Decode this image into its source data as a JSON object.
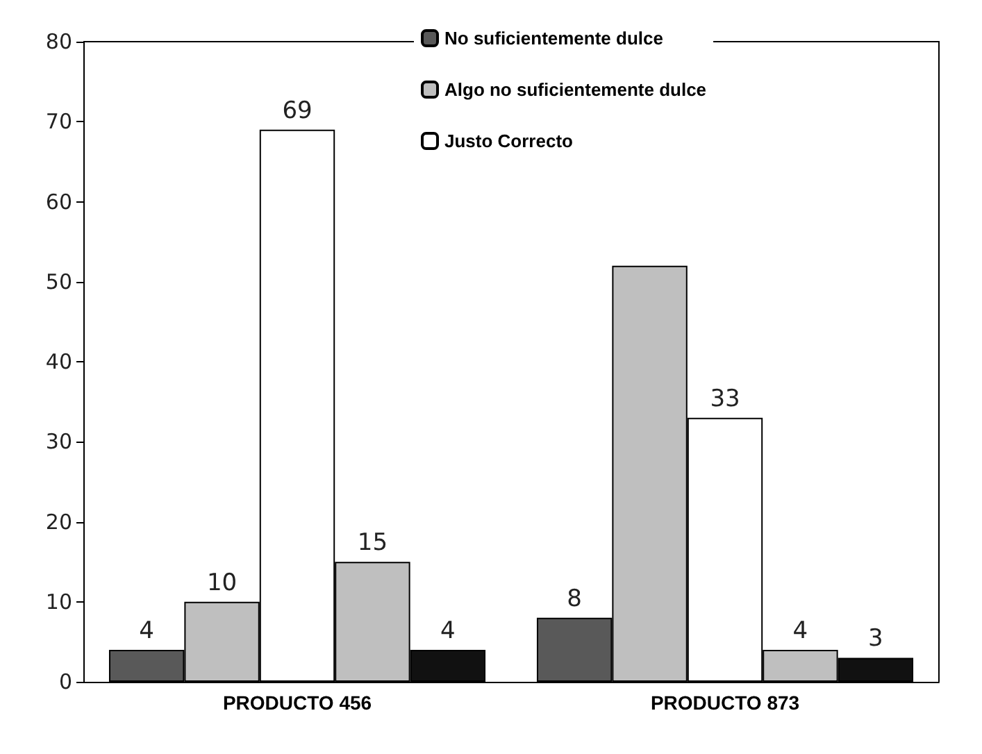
{
  "chart_data": {
    "type": "bar",
    "categories": [
      "PRODUCTO 456",
      "PRODUCTO 873"
    ],
    "series": [
      {
        "name": "No suficientemente dulce",
        "color": "#595959",
        "values": [
          4,
          8
        ],
        "value_labels": [
          "4",
          "8"
        ]
      },
      {
        "name": "Algo no suficientemente dulce",
        "color": "#bfbfbf",
        "values": [
          10,
          52
        ],
        "value_labels": [
          "10",
          null
        ]
      },
      {
        "name": "Justo Correcto",
        "color": "#ffffff",
        "values": [
          69,
          33
        ],
        "value_labels": [
          "69",
          "33"
        ]
      },
      {
        "color": "#bfbfbf",
        "values": [
          15,
          4
        ],
        "value_labels": [
          "15",
          "4"
        ]
      },
      {
        "color": "#111111",
        "values": [
          4,
          3
        ],
        "value_labels": [
          "4",
          "3"
        ]
      }
    ],
    "ylim": [
      0,
      80
    ],
    "yticks": [
      0,
      10,
      20,
      30,
      40,
      50,
      60,
      70,
      80
    ],
    "grid": false,
    "legend": "top"
  }
}
